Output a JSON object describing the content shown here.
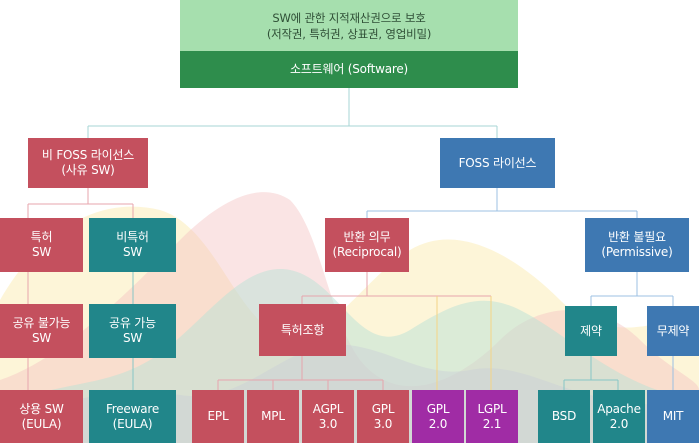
{
  "header": {
    "protection_line1": "SW에 관한 지적재산권으로 보호",
    "protection_line2": "(저작권, 특허권, 상표권, 영업비밀)",
    "software": "소프트웨어 (Software)"
  },
  "level1": {
    "non_foss": "비 FOSS 라이선스\n(사유 SW)",
    "foss": "FOSS 라이선스"
  },
  "level2": {
    "patent": "특허\nSW",
    "non_patent": "비특허\nSW",
    "reciprocal": "반환 의무\n(Reciprocal)",
    "permissive": "반환 불필요\n(Permissive)"
  },
  "level3": {
    "not_shareable": "공유 불가능\nSW",
    "shareable": "공유 가능\nSW",
    "patent_clause": "특허조항",
    "restricted": "제약",
    "unrestricted": "무제약"
  },
  "leaves": {
    "commercial": "상용 SW\n(EULA)",
    "freeware": "Freeware\n(EULA)",
    "epl": "EPL",
    "mpl": "MPL",
    "agpl": "AGPL\n3.0",
    "gpl3": "GPL\n3.0",
    "gpl2": "GPL\n2.0",
    "lgpl": "LGPL\n2.1",
    "bsd": "BSD",
    "apache": "Apache\n2.0",
    "mit": "MIT"
  },
  "colors": {
    "proprietary_red": "#c4505e",
    "foss_blue": "#3e78b2",
    "teal": "#21868a",
    "purple": "#a02ca5",
    "green_light": "#a6dfae",
    "green_dark": "#2e8d4c"
  }
}
